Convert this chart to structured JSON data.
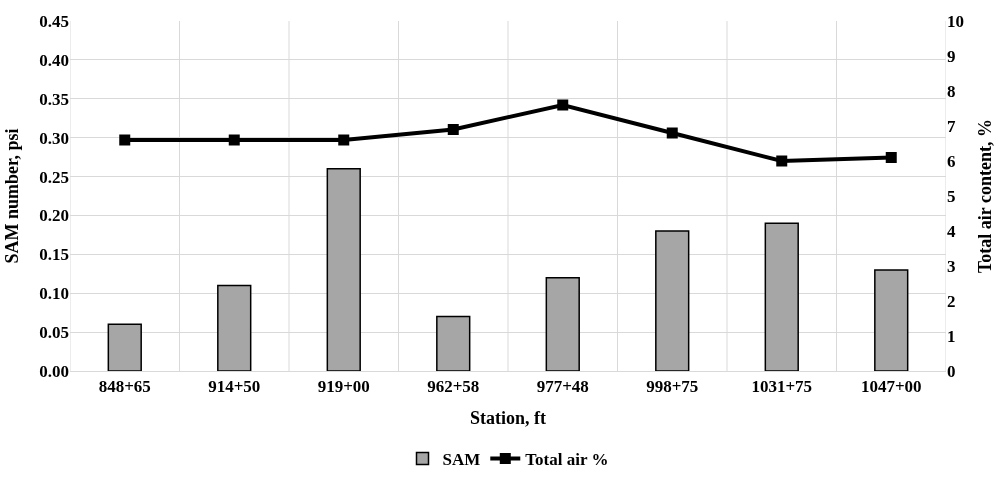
{
  "chart_data": {
    "type": "bar",
    "xlabel": "Station, ft",
    "ylabel": "SAM number, psi",
    "y2label": "Total air content, %",
    "categories": [
      "848+65",
      "914+50",
      "919+00",
      "962+58",
      "977+48",
      "998+75",
      "1031+75",
      "1047+00"
    ],
    "series": [
      {
        "name": "SAM",
        "color": "#a6a6a6",
        "values": [
          0.06,
          0.11,
          0.26,
          0.07,
          0.12,
          0.18,
          0.19,
          0.13
        ]
      },
      {
        "name": "Total air %",
        "type": "line",
        "axis": "y2",
        "color": "#000000",
        "marker": "square",
        "line_style": "solid",
        "values": [
          6.6,
          6.6,
          6.6,
          6.9,
          7.6,
          6.8,
          6.0,
          6.1
        ]
      }
    ],
    "ylim": [
      0,
      0.45
    ],
    "yticks": [
      {
        "value": 0,
        "label": "0.00"
      },
      {
        "value": 0.05,
        "label": "0.05"
      },
      {
        "value": 0.1,
        "label": "0.10"
      },
      {
        "value": 0.15,
        "label": "0.15"
      },
      {
        "value": 0.2,
        "label": "0.20"
      },
      {
        "value": 0.25,
        "label": "0.25"
      },
      {
        "value": 0.3,
        "label": "0.30"
      },
      {
        "value": 0.35,
        "label": "0.35"
      },
      {
        "value": 0.4,
        "label": "0.40"
      },
      {
        "value": 0.45,
        "label": "0.45"
      }
    ],
    "y2lim": [
      0,
      10
    ],
    "y2ticks": [
      0,
      1,
      2,
      3,
      4,
      5,
      6,
      7,
      8,
      9,
      10
    ],
    "grid": true,
    "legend": "bottom"
  }
}
